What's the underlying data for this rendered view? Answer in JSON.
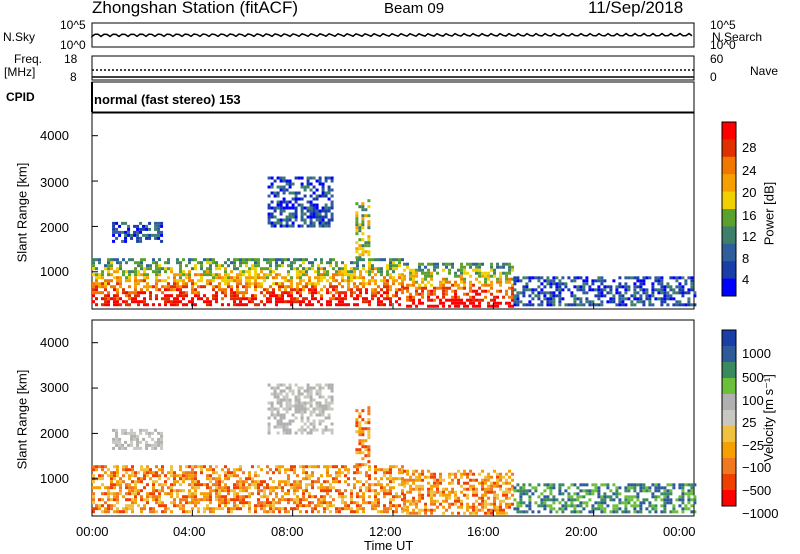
{
  "header": {
    "station": "Zhongshan Station (fitACF)",
    "beam": "Beam 09",
    "date": "11/Sep/2018"
  },
  "params": {
    "nsky_label": "N.Sky",
    "nsearch_label": "N.Search",
    "nsky_ticks": [
      "10^5",
      "10^0"
    ],
    "nsearch_ticks": [
      "10^5",
      "10^0"
    ],
    "freq_label_1": "Freq.",
    "freq_label_2": "[MHz]",
    "freq_ticks": [
      "18",
      "8"
    ],
    "nave_label": "Nave",
    "nave_ticks": [
      "60",
      "0"
    ],
    "cpid_label": "CPID",
    "cpid_value": "normal (fast stereo) 153"
  },
  "colors": {
    "power": [
      "#0000ff",
      "#1a3ea8",
      "#2e5e9c",
      "#3d7f6b",
      "#5aa02c",
      "#f0d000",
      "#f5a000",
      "#f07800",
      "#e03000",
      "#ff0000"
    ],
    "velocity": [
      "#ff0000",
      "#f04000",
      "#f07820",
      "#f5a000",
      "#f0c040",
      "#c8c8c0",
      "#b0b0b0",
      "#6bbf3a",
      "#3a8a60",
      "#2e5a9c",
      "#1a3ea8"
    ]
  },
  "chart_data": [
    {
      "type": "heatmap",
      "ylabel": "Slant Range [km]",
      "xlabel": "Time UT",
      "x_ticks": [
        "00:00",
        "04:00",
        "08:00",
        "12:00",
        "16:00",
        "20:00",
        "00:00"
      ],
      "x_range_hours": [
        0,
        24
      ],
      "y_ticks": [
        "1000",
        "2000",
        "3000",
        "4000"
      ],
      "y_range_km": [
        180,
        4500
      ],
      "colorbar": {
        "label": "Power [dB]",
        "ticks": [
          "4",
          "8",
          "12",
          "16",
          "20",
          "24",
          "28"
        ]
      },
      "echo_regions": [
        {
          "t": [
            0.0,
            12.4
          ],
          "r": [
            250,
            1300
          ],
          "level": "high"
        },
        {
          "t": [
            12.4,
            16.8
          ],
          "r": [
            250,
            1200
          ],
          "level": "high"
        },
        {
          "t": [
            16.8,
            24.0
          ],
          "r": [
            250,
            900
          ],
          "level": "low"
        },
        {
          "t": [
            0.8,
            2.8
          ],
          "r": [
            1700,
            2100
          ],
          "level": "low"
        },
        {
          "t": [
            7.0,
            9.6
          ],
          "r": [
            2000,
            3100
          ],
          "level": "low"
        },
        {
          "t": [
            10.5,
            11.0
          ],
          "r": [
            1300,
            2600
          ],
          "level": "mid"
        }
      ]
    },
    {
      "type": "heatmap",
      "ylabel": "Slant Range [km]",
      "xlabel": "Time UT",
      "x_ticks": [
        "00:00",
        "04:00",
        "08:00",
        "12:00",
        "16:00",
        "20:00",
        "00:00"
      ],
      "x_range_hours": [
        0,
        24
      ],
      "y_ticks": [
        "1000",
        "2000",
        "3000",
        "4000"
      ],
      "y_range_km": [
        180,
        4500
      ],
      "colorbar": {
        "label": "Velocity [m s⁻¹]",
        "ticks": [
          "1000",
          "500",
          "100",
          "25",
          "−25",
          "−100",
          "−500",
          "−1000"
        ]
      },
      "echo_regions": [
        {
          "t": [
            0.0,
            12.4
          ],
          "r": [
            250,
            1300
          ],
          "level": "toward"
        },
        {
          "t": [
            12.4,
            16.8
          ],
          "r": [
            250,
            1200
          ],
          "level": "toward"
        },
        {
          "t": [
            16.8,
            24.0
          ],
          "r": [
            250,
            900
          ],
          "level": "away"
        },
        {
          "t": [
            0.8,
            2.8
          ],
          "r": [
            1700,
            2100
          ],
          "level": "ground"
        },
        {
          "t": [
            7.0,
            9.6
          ],
          "r": [
            2000,
            3100
          ],
          "level": "ground"
        },
        {
          "t": [
            10.5,
            11.0
          ],
          "r": [
            1300,
            2600
          ],
          "level": "toward"
        }
      ]
    }
  ]
}
